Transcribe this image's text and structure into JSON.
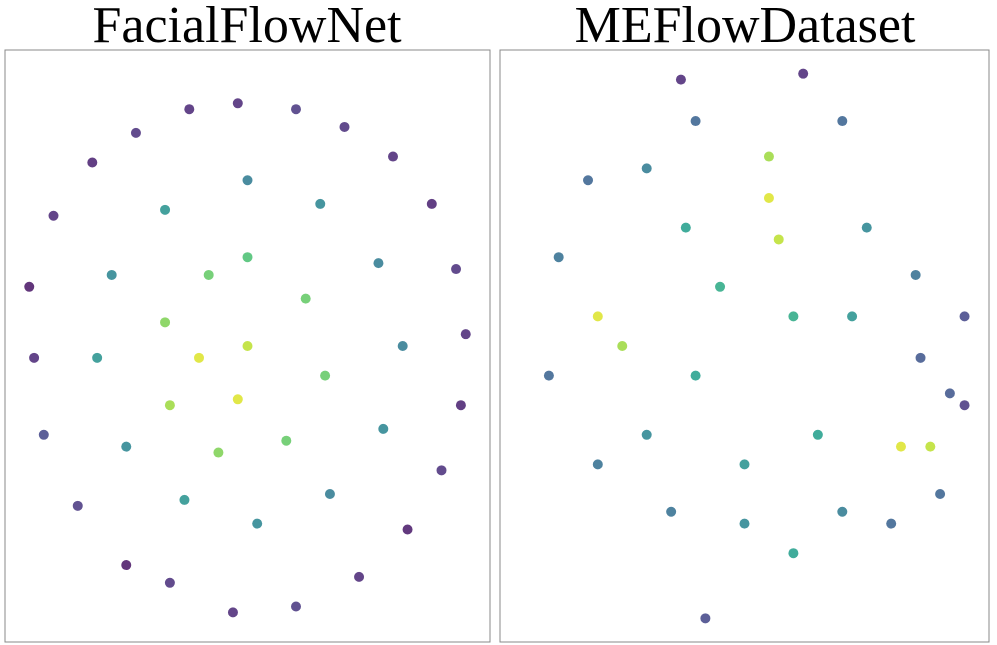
{
  "chart_data": [
    {
      "type": "scatter",
      "title": "FacialFlowNet",
      "colormap": "viridis",
      "xlim": [
        0,
        100
      ],
      "ylim": [
        0,
        100
      ],
      "x": [
        48,
        60,
        70,
        80,
        88,
        93,
        95,
        94,
        90,
        83,
        73,
        60,
        47,
        34,
        25,
        15,
        8,
        6,
        5,
        10,
        18,
        27,
        38,
        50,
        65,
        77,
        82,
        78,
        67,
        52,
        37,
        25,
        19,
        22,
        33,
        50,
        62,
        66,
        58,
        44,
        34,
        33,
        42,
        40,
        50,
        48
      ],
      "y": [
        91,
        90,
        87,
        82,
        74,
        63,
        52,
        40,
        29,
        19,
        11,
        6,
        5,
        10,
        13,
        23,
        35,
        48,
        60,
        72,
        81,
        86,
        90,
        78,
        74,
        64,
        50,
        36,
        25,
        20,
        24,
        33,
        48,
        62,
        73,
        65,
        58,
        45,
        34,
        32,
        40,
        54,
        62,
        48,
        50,
        41
      ],
      "c": [
        0.1,
        0.15,
        0.12,
        0.1,
        0.08,
        0.12,
        0.1,
        0.08,
        0.12,
        0.06,
        0.1,
        0.15,
        0.1,
        0.12,
        0.05,
        0.15,
        0.2,
        0.1,
        0.05,
        0.1,
        0.08,
        0.12,
        0.1,
        0.4,
        0.45,
        0.4,
        0.4,
        0.45,
        0.4,
        0.45,
        0.5,
        0.45,
        0.5,
        0.45,
        0.5,
        0.7,
        0.75,
        0.75,
        0.75,
        0.8,
        0.85,
        0.8,
        0.75,
        0.95,
        0.9,
        0.95
      ]
    },
    {
      "type": "scatter",
      "title": "MEFlowDataset",
      "colormap": "viridis",
      "xlim": [
        0,
        100
      ],
      "ylim": [
        0,
        100
      ],
      "x": [
        55,
        55,
        57,
        20,
        25,
        82,
        88,
        60,
        42,
        86,
        30,
        40,
        70,
        75,
        72,
        60,
        45,
        40,
        30,
        20,
        10,
        12,
        18,
        50,
        65,
        70,
        50,
        35,
        80,
        92,
        95,
        85,
        38,
        90,
        37,
        62,
        95
      ],
      "y": [
        75,
        82,
        68,
        55,
        50,
        33,
        33,
        15,
        4,
        48,
        80,
        88,
        88,
        70,
        55,
        55,
        60,
        45,
        35,
        30,
        45,
        65,
        78,
        30,
        35,
        22,
        20,
        22,
        20,
        42,
        55,
        62,
        70,
        25,
        95,
        96,
        40
      ],
      "c": [
        0.95,
        0.85,
        0.9,
        0.95,
        0.85,
        0.95,
        0.9,
        0.55,
        0.2,
        0.25,
        0.4,
        0.3,
        0.3,
        0.45,
        0.5,
        0.6,
        0.6,
        0.55,
        0.45,
        0.35,
        0.3,
        0.35,
        0.3,
        0.5,
        0.55,
        0.4,
        0.45,
        0.35,
        0.3,
        0.25,
        0.2,
        0.35,
        0.55,
        0.3,
        0.1,
        0.1,
        0.15
      ]
    }
  ]
}
